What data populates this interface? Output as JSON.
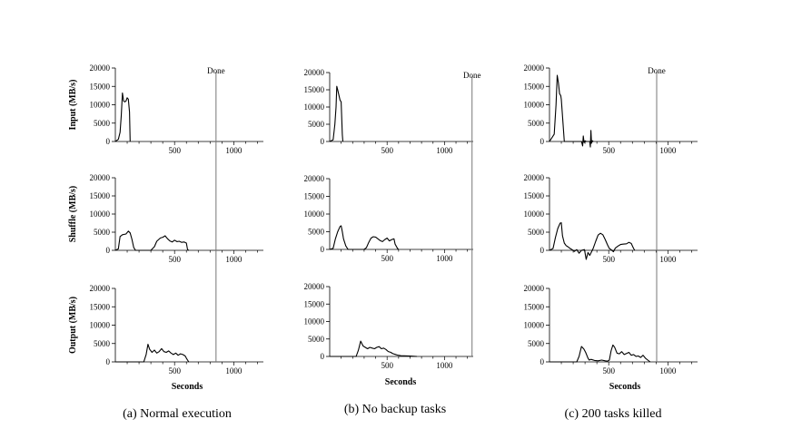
{
  "figure": {
    "captions": [
      "(a) Normal execution",
      "(b) No backup tasks",
      "(c) 200 tasks killed"
    ],
    "row_labels": [
      "Input (MB/s)",
      "Shuffle (MB/s)",
      "Output (MB/s)"
    ],
    "xlabel": "Seconds",
    "done_label": "Done"
  },
  "chart_data": [
    {
      "id": "a",
      "type": "line",
      "caption": "(a) Normal execution",
      "xlim": [
        0,
        1250
      ],
      "done_x": 850,
      "xticks": [
        500,
        1000
      ],
      "yticks": [
        0,
        5000,
        10000,
        15000,
        20000
      ],
      "series": [
        {
          "row": "Input (MB/s)",
          "points": [
            [
              0,
              0
            ],
            [
              25,
              600
            ],
            [
              40,
              2500
            ],
            [
              50,
              7000
            ],
            [
              60,
              13200
            ],
            [
              70,
              11000
            ],
            [
              80,
              10800
            ],
            [
              90,
              11000
            ],
            [
              100,
              11900
            ],
            [
              110,
              11500
            ],
            [
              120,
              8000
            ],
            [
              125,
              0
            ]
          ]
        },
        {
          "row": "Shuffle (MB/s)",
          "points": [
            [
              0,
              0
            ],
            [
              25,
              400
            ],
            [
              40,
              3800
            ],
            [
              60,
              4300
            ],
            [
              90,
              4500
            ],
            [
              110,
              5300
            ],
            [
              125,
              4800
            ],
            [
              140,
              3000
            ],
            [
              155,
              800
            ],
            [
              170,
              0
            ],
            [
              300,
              0
            ],
            [
              330,
              1000
            ],
            [
              350,
              2500
            ],
            [
              380,
              3400
            ],
            [
              400,
              3600
            ],
            [
              420,
              4000
            ],
            [
              440,
              3200
            ],
            [
              460,
              2600
            ],
            [
              480,
              2300
            ],
            [
              500,
              2800
            ],
            [
              520,
              2400
            ],
            [
              540,
              2500
            ],
            [
              560,
              2200
            ],
            [
              580,
              2300
            ],
            [
              600,
              2000
            ],
            [
              610,
              200
            ],
            [
              620,
              0
            ]
          ]
        },
        {
          "row": "Output (MB/s)",
          "points": [
            [
              0,
              0
            ],
            [
              240,
              0
            ],
            [
              260,
              2000
            ],
            [
              275,
              4800
            ],
            [
              290,
              3400
            ],
            [
              310,
              2600
            ],
            [
              330,
              3200
            ],
            [
              350,
              2400
            ],
            [
              370,
              2800
            ],
            [
              390,
              3600
            ],
            [
              410,
              2800
            ],
            [
              430,
              2600
            ],
            [
              450,
              3000
            ],
            [
              470,
              2400
            ],
            [
              490,
              2000
            ],
            [
              510,
              2400
            ],
            [
              530,
              1800
            ],
            [
              550,
              2200
            ],
            [
              570,
              2000
            ],
            [
              590,
              1600
            ],
            [
              600,
              1000
            ],
            [
              610,
              500
            ],
            [
              620,
              0
            ]
          ]
        }
      ]
    },
    {
      "id": "b",
      "type": "line",
      "caption": "(b) No backup tasks",
      "xlim": [
        0,
        1250
      ],
      "done_x": 1240,
      "xticks": [
        500,
        1000
      ],
      "yticks": [
        0,
        5000,
        10000,
        15000,
        20000
      ],
      "series": [
        {
          "row": "Input (MB/s)",
          "points": [
            [
              0,
              0
            ],
            [
              30,
              500
            ],
            [
              45,
              5000
            ],
            [
              55,
              10000
            ],
            [
              62,
              16000
            ],
            [
              70,
              15000
            ],
            [
              80,
              13500
            ],
            [
              90,
              12000
            ],
            [
              100,
              11500
            ],
            [
              110,
              2000
            ],
            [
              115,
              0
            ]
          ]
        },
        {
          "row": "Shuffle (MB/s)",
          "points": [
            [
              0,
              0
            ],
            [
              30,
              300
            ],
            [
              50,
              3000
            ],
            [
              70,
              5000
            ],
            [
              90,
              6500
            ],
            [
              100,
              6700
            ],
            [
              110,
              5000
            ],
            [
              120,
              3000
            ],
            [
              140,
              1000
            ],
            [
              160,
              0
            ],
            [
              300,
              0
            ],
            [
              320,
              500
            ],
            [
              340,
              2000
            ],
            [
              360,
              3200
            ],
            [
              380,
              3600
            ],
            [
              400,
              3500
            ],
            [
              420,
              3000
            ],
            [
              440,
              2500
            ],
            [
              460,
              2200
            ],
            [
              480,
              2800
            ],
            [
              500,
              3200
            ],
            [
              520,
              2400
            ],
            [
              540,
              2800
            ],
            [
              560,
              3000
            ],
            [
              570,
              1500
            ],
            [
              590,
              300
            ],
            [
              600,
              0
            ]
          ]
        },
        {
          "row": "Output (MB/s)",
          "points": [
            [
              0,
              0
            ],
            [
              230,
              0
            ],
            [
              250,
              1800
            ],
            [
              270,
              4400
            ],
            [
              290,
              3000
            ],
            [
              310,
              2600
            ],
            [
              330,
              2200
            ],
            [
              350,
              2600
            ],
            [
              370,
              2400
            ],
            [
              390,
              2200
            ],
            [
              410,
              2600
            ],
            [
              430,
              2800
            ],
            [
              450,
              2200
            ],
            [
              470,
              2400
            ],
            [
              490,
              2000
            ],
            [
              510,
              1400
            ],
            [
              530,
              1200
            ],
            [
              550,
              800
            ],
            [
              570,
              600
            ],
            [
              590,
              400
            ],
            [
              620,
              200
            ],
            [
              700,
              100
            ],
            [
              760,
              0
            ]
          ]
        }
      ]
    },
    {
      "id": "c",
      "type": "line",
      "caption": "(c) 200 tasks killed",
      "xlim": [
        0,
        1250
      ],
      "done_x": 905,
      "xticks": [
        500,
        1000
      ],
      "yticks": [
        0,
        5000,
        10000,
        15000,
        20000
      ],
      "series": [
        {
          "row": "Input (MB/s)",
          "points": [
            [
              0,
              0
            ],
            [
              40,
              2000
            ],
            [
              55,
              10000
            ],
            [
              65,
              18000
            ],
            [
              75,
              16000
            ],
            [
              85,
              13000
            ],
            [
              95,
              12500
            ],
            [
              100,
              11500
            ],
            [
              110,
              7000
            ],
            [
              125,
              0
            ],
            [
              270,
              0
            ],
            [
              280,
              -1200
            ],
            [
              285,
              1500
            ],
            [
              292,
              -300
            ],
            [
              300,
              200
            ],
            [
              310,
              0
            ],
            [
              340,
              0
            ],
            [
              345,
              -1500
            ],
            [
              350,
              3000
            ],
            [
              355,
              -500
            ],
            [
              362,
              200
            ],
            [
              370,
              0
            ]
          ]
        },
        {
          "row": "Shuffle (MB/s)",
          "points": [
            [
              0,
              0
            ],
            [
              30,
              500
            ],
            [
              50,
              3500
            ],
            [
              70,
              6000
            ],
            [
              90,
              7500
            ],
            [
              100,
              7600
            ],
            [
              110,
              4000
            ],
            [
              125,
              2000
            ],
            [
              140,
              1300
            ],
            [
              155,
              1000
            ],
            [
              170,
              600
            ],
            [
              190,
              200
            ],
            [
              210,
              -300
            ],
            [
              230,
              200
            ],
            [
              250,
              -800
            ],
            [
              270,
              0
            ],
            [
              295,
              200
            ],
            [
              310,
              -2500
            ],
            [
              325,
              -600
            ],
            [
              340,
              -1400
            ],
            [
              355,
              -400
            ],
            [
              370,
              600
            ],
            [
              390,
              2500
            ],
            [
              410,
              4200
            ],
            [
              430,
              4700
            ],
            [
              450,
              4300
            ],
            [
              470,
              3000
            ],
            [
              490,
              1500
            ],
            [
              505,
              500
            ],
            [
              520,
              200
            ],
            [
              540,
              -400
            ],
            [
              555,
              600
            ],
            [
              580,
              1200
            ],
            [
              600,
              1600
            ],
            [
              620,
              1700
            ],
            [
              650,
              1800
            ],
            [
              670,
              2200
            ],
            [
              690,
              1900
            ],
            [
              710,
              500
            ],
            [
              720,
              0
            ]
          ]
        },
        {
          "row": "Output (MB/s)",
          "points": [
            [
              0,
              0
            ],
            [
              230,
              0
            ],
            [
              250,
              1500
            ],
            [
              270,
              4200
            ],
            [
              290,
              3500
            ],
            [
              305,
              2600
            ],
            [
              325,
              1000
            ],
            [
              335,
              500
            ],
            [
              350,
              700
            ],
            [
              380,
              400
            ],
            [
              410,
              300
            ],
            [
              440,
              500
            ],
            [
              470,
              300
            ],
            [
              490,
              200
            ],
            [
              505,
              500
            ],
            [
              520,
              3000
            ],
            [
              535,
              4600
            ],
            [
              550,
              4000
            ],
            [
              570,
              2400
            ],
            [
              590,
              2200
            ],
            [
              610,
              2800
            ],
            [
              630,
              2000
            ],
            [
              650,
              2300
            ],
            [
              670,
              2600
            ],
            [
              690,
              1800
            ],
            [
              710,
              2000
            ],
            [
              730,
              1500
            ],
            [
              750,
              1600
            ],
            [
              770,
              1200
            ],
            [
              790,
              1800
            ],
            [
              810,
              1000
            ],
            [
              830,
              500
            ],
            [
              850,
              0
            ]
          ]
        }
      ]
    }
  ]
}
